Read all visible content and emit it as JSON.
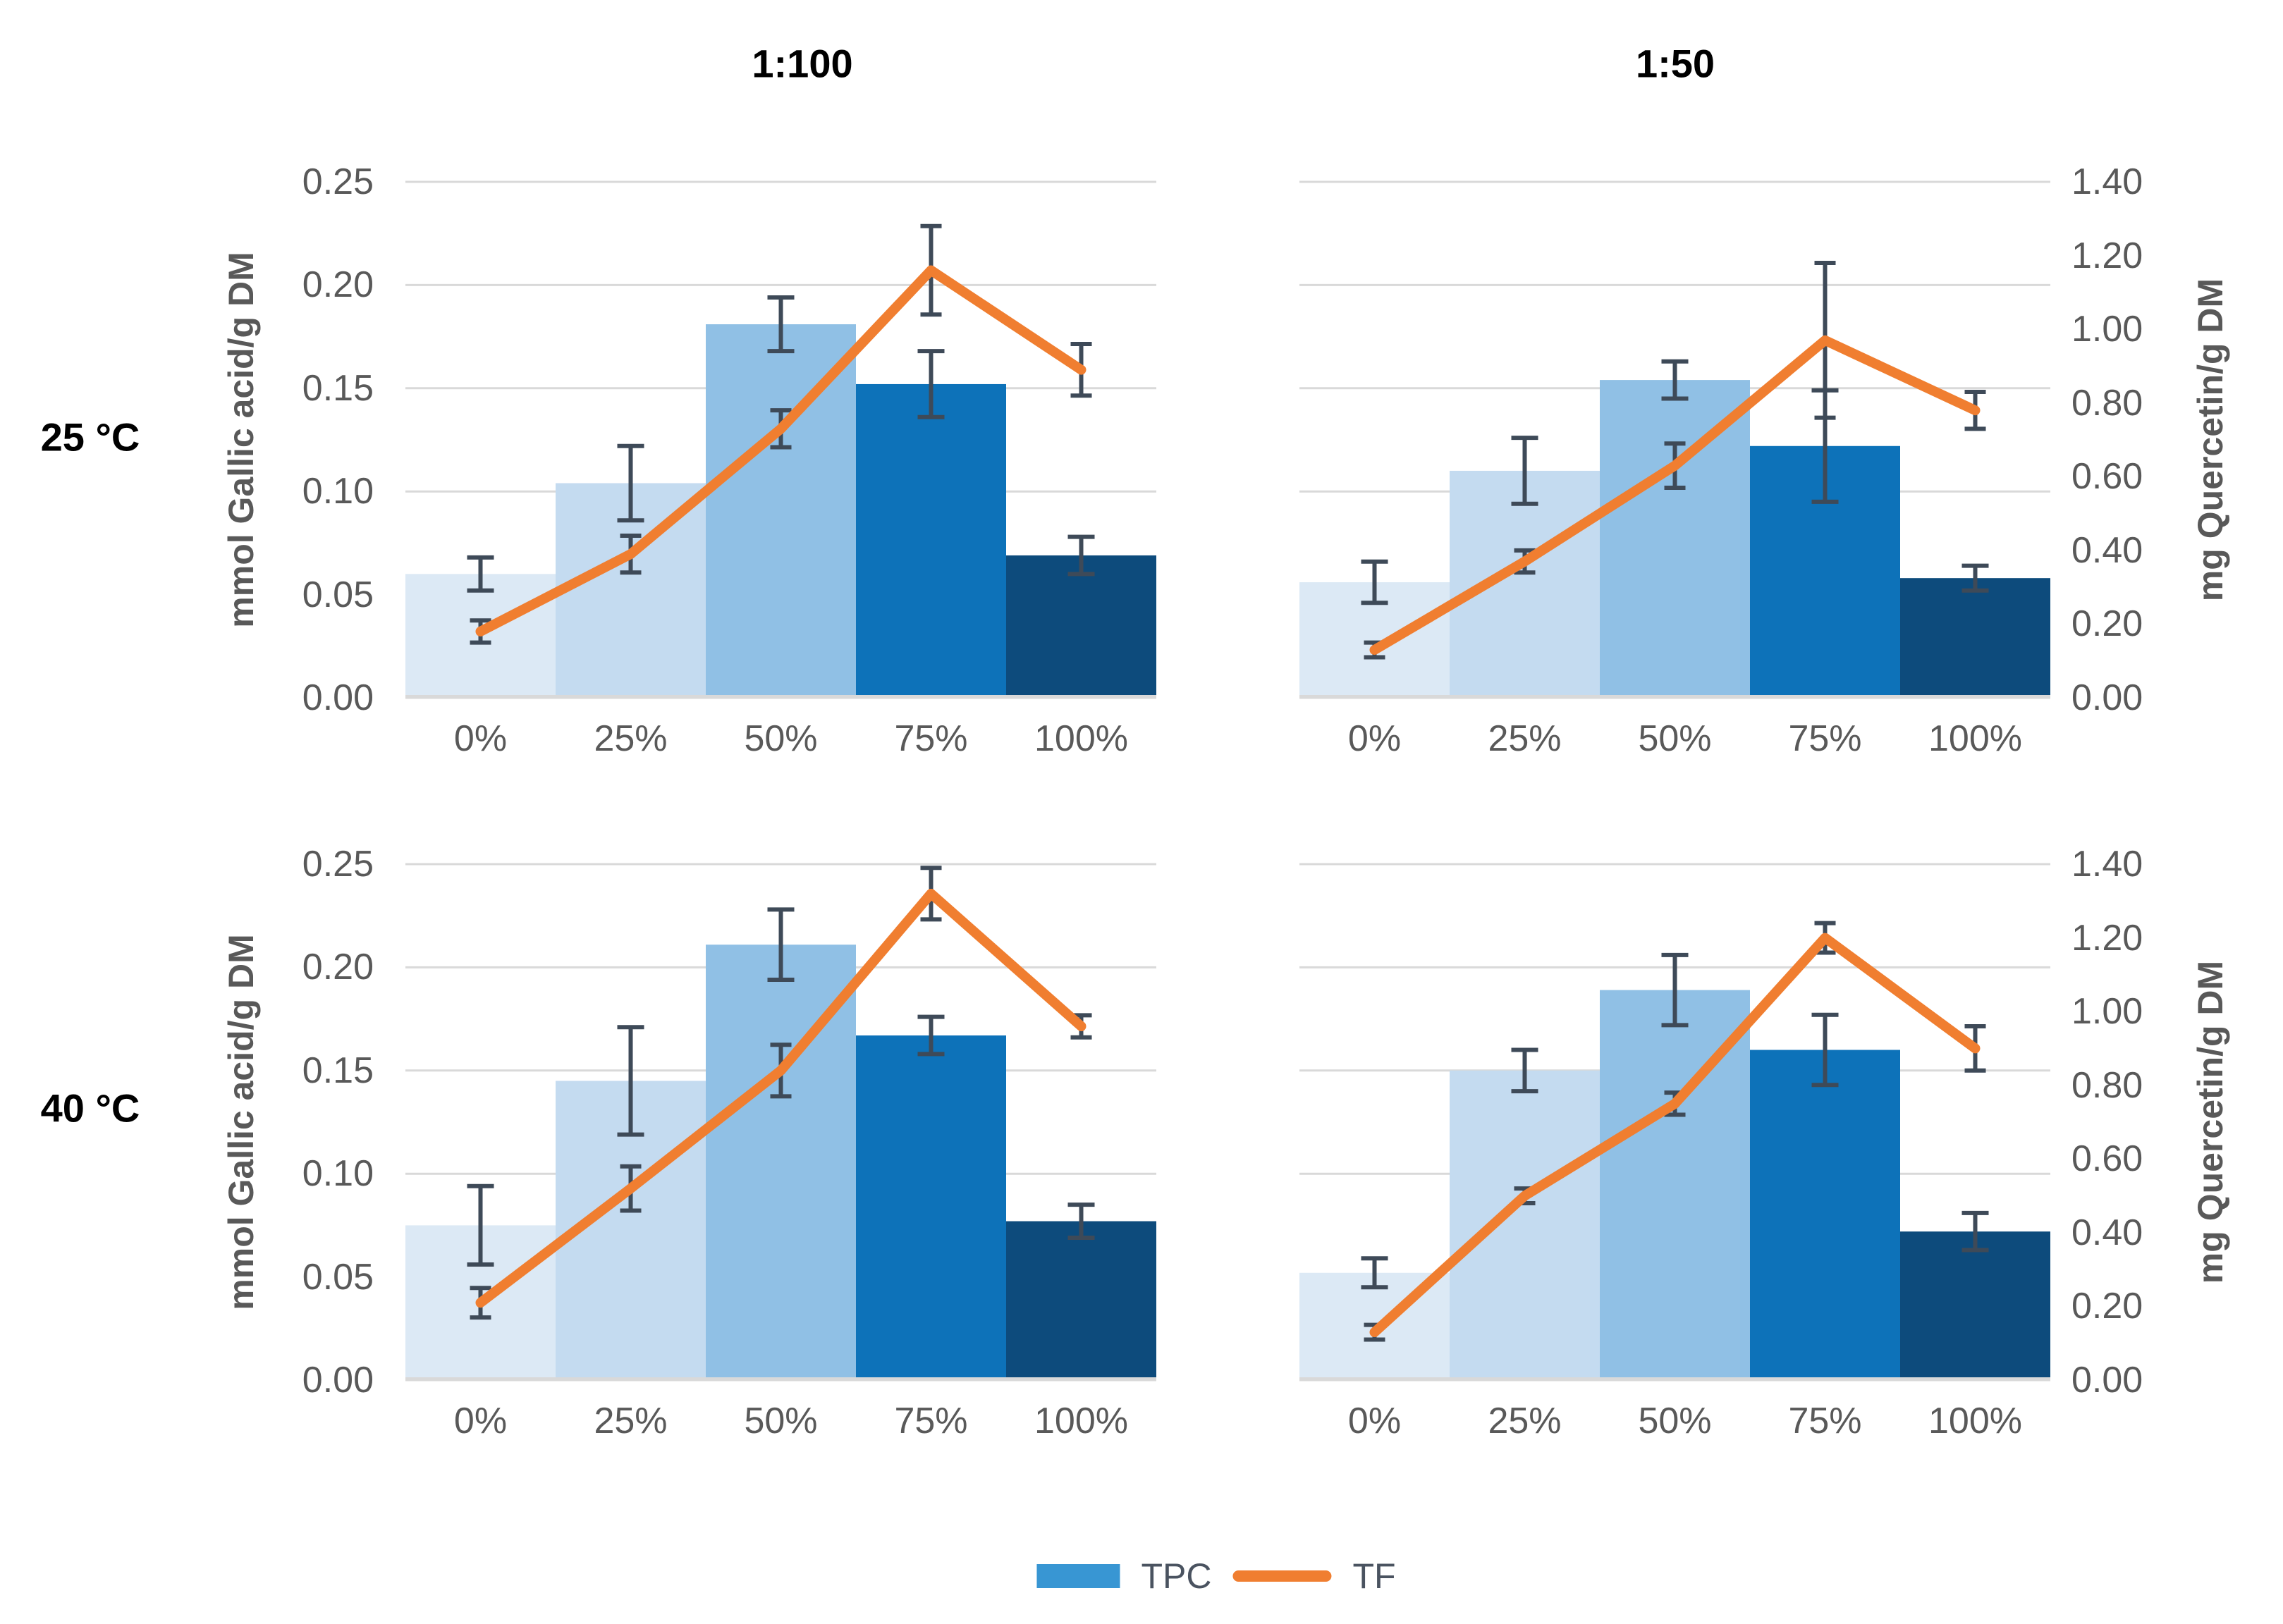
{
  "figure": {
    "column_titles": [
      "1:100",
      "1:50"
    ],
    "row_labels": [
      "25 °C",
      "40 °C"
    ],
    "legend": {
      "tpc_label": "TPC",
      "tf_label": "TF"
    }
  },
  "axes": {
    "left": {
      "label": "mmol Gallic acid/g DM",
      "ticks": [
        "0.00",
        "0.05",
        "0.10",
        "0.15",
        "0.20",
        "0.25"
      ],
      "range": [
        0,
        0.25
      ]
    },
    "right": {
      "label": "mg Quercetin/g DM",
      "ticks": [
        "0.00",
        "0.20",
        "0.40",
        "0.60",
        "0.80",
        "1.00",
        "1.20",
        "1.40"
      ],
      "range": [
        0,
        1.4
      ]
    },
    "categories": [
      "0%",
      "25%",
      "50%",
      "75%",
      "100%"
    ]
  },
  "colors": {
    "bars": [
      "#DCE9F5",
      "#C4DBF0",
      "#90C0E5",
      "#0D72B9",
      "#0D4B7C"
    ],
    "tf_line": "#F07E30",
    "error_bar": "#3E4A58",
    "gridline": "#D9D9D9",
    "tick_text": "#595959",
    "legend_swatch": "#3896D3"
  },
  "chart_data": [
    {
      "type": "bar",
      "panel": "top-left",
      "temperature": "25 °C",
      "ratio": "1:100",
      "categories": [
        "0%",
        "25%",
        "50%",
        "75%",
        "100%"
      ],
      "xlabel": "",
      "ylabel_left": "mmol Gallic acid/g DM",
      "ylabel_right": "mg Quercetin/g DM",
      "ylim_left": [
        0,
        0.25
      ],
      "ylim_right": [
        0,
        1.4
      ],
      "grid": true,
      "show_left_ticks": true,
      "show_right_ticks": false,
      "series": [
        {
          "name": "TPC",
          "type": "bar",
          "axis": "left",
          "values": [
            0.06,
            0.104,
            0.181,
            0.152,
            0.069
          ],
          "errors": [
            0.008,
            0.018,
            0.013,
            0.016,
            0.009
          ]
        },
        {
          "name": "TF",
          "type": "line",
          "axis": "right",
          "values": [
            0.18,
            0.39,
            0.73,
            1.16,
            0.89
          ],
          "errors": [
            0.03,
            0.05,
            0.05,
            0.12,
            0.07
          ]
        }
      ]
    },
    {
      "type": "bar",
      "panel": "top-right",
      "temperature": "25 °C",
      "ratio": "1:50",
      "categories": [
        "0%",
        "25%",
        "50%",
        "75%",
        "100%"
      ],
      "xlabel": "",
      "ylabel_left": "mmol Gallic acid/g DM",
      "ylabel_right": "mg Quercetin/g DM",
      "ylim_left": [
        0,
        0.25
      ],
      "ylim_right": [
        0,
        1.4
      ],
      "grid": true,
      "show_left_ticks": false,
      "show_right_ticks": true,
      "series": [
        {
          "name": "TPC",
          "type": "bar",
          "axis": "left",
          "values": [
            0.056,
            0.11,
            0.154,
            0.122,
            0.058
          ],
          "errors": [
            0.01,
            0.016,
            0.009,
            0.027,
            0.006
          ]
        },
        {
          "name": "TF",
          "type": "line",
          "axis": "right",
          "values": [
            0.13,
            0.37,
            0.63,
            0.97,
            0.78
          ],
          "errors": [
            0.02,
            0.03,
            0.06,
            0.21,
            0.05
          ]
        }
      ]
    },
    {
      "type": "bar",
      "panel": "bottom-left",
      "temperature": "40 °C",
      "ratio": "1:100",
      "categories": [
        "0%",
        "25%",
        "50%",
        "75%",
        "100%"
      ],
      "xlabel": "",
      "ylabel_left": "mmol Gallic acid/g DM",
      "ylabel_right": "mg Quercetin/g DM",
      "ylim_left": [
        0,
        0.25
      ],
      "ylim_right": [
        0,
        1.4
      ],
      "grid": true,
      "show_left_ticks": true,
      "show_right_ticks": false,
      "series": [
        {
          "name": "TPC",
          "type": "bar",
          "axis": "left",
          "values": [
            0.075,
            0.145,
            0.211,
            0.167,
            0.077
          ],
          "errors": [
            0.019,
            0.026,
            0.017,
            0.009,
            0.008
          ]
        },
        {
          "name": "TF",
          "type": "line",
          "axis": "right",
          "values": [
            0.21,
            0.52,
            0.84,
            1.32,
            0.96
          ],
          "errors": [
            0.04,
            0.06,
            0.07,
            0.07,
            0.03
          ]
        }
      ]
    },
    {
      "type": "bar",
      "panel": "bottom-right",
      "temperature": "40 °C",
      "ratio": "1:50",
      "categories": [
        "0%",
        "25%",
        "50%",
        "75%",
        "100%"
      ],
      "xlabel": "",
      "ylabel_left": "mmol Gallic acid/g DM",
      "ylabel_right": "mg Quercetin/g DM",
      "ylim_left": [
        0,
        0.25
      ],
      "ylim_right": [
        0,
        1.4
      ],
      "grid": true,
      "show_left_ticks": false,
      "show_right_ticks": true,
      "series": [
        {
          "name": "TPC",
          "type": "bar",
          "axis": "left",
          "values": [
            0.052,
            0.15,
            0.189,
            0.16,
            0.072
          ],
          "errors": [
            0.007,
            0.01,
            0.017,
            0.017,
            0.009
          ]
        },
        {
          "name": "TF",
          "type": "line",
          "axis": "right",
          "values": [
            0.13,
            0.5,
            0.75,
            1.2,
            0.9
          ],
          "errors": [
            0.02,
            0.02,
            0.03,
            0.04,
            0.06
          ]
        }
      ]
    }
  ]
}
